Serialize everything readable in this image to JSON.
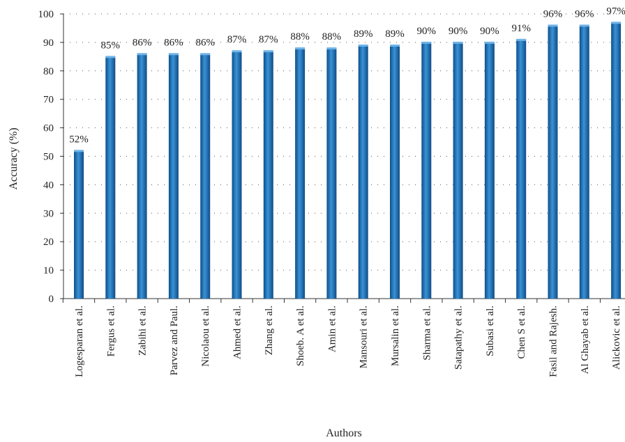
{
  "chart_data": {
    "type": "bar",
    "title": "",
    "xlabel": "Authors",
    "ylabel": "Accuracy (%)",
    "ylim": [
      0,
      100
    ],
    "yticks": [
      0,
      10,
      20,
      30,
      40,
      50,
      60,
      70,
      80,
      90,
      100
    ],
    "grid": "dotted horizontal",
    "bar_color": "#1f6fb2",
    "categories": [
      "Logesparan et al.",
      "Fergus et al.",
      "Zabihi et al.",
      "Parvez and Paul.",
      "Nicolaou et al.",
      "Ahmed et al.",
      "Zhang et al.",
      "Shoeb. A et al.",
      "Amin et al.",
      "Mansouri et al.",
      "Mursalin et al.",
      "Sharma et al.",
      "Satapathy et al.",
      "Subasi et al.",
      "Chen S et al.",
      "Fasil and Rajesh.",
      "Al Ghayab et al.",
      "Alickovic et al."
    ],
    "values": [
      52,
      85,
      86,
      86,
      86,
      87,
      87,
      88,
      88,
      89,
      89,
      90,
      90,
      90,
      91,
      96,
      96,
      97
    ],
    "data_labels": [
      "52%",
      "85%",
      "86%",
      "86%",
      "86%",
      "87%",
      "87%",
      "88%",
      "88%",
      "89%",
      "89%",
      "90%",
      "90%",
      "90%",
      "91%",
      "96%",
      "96%",
      "97%"
    ]
  }
}
